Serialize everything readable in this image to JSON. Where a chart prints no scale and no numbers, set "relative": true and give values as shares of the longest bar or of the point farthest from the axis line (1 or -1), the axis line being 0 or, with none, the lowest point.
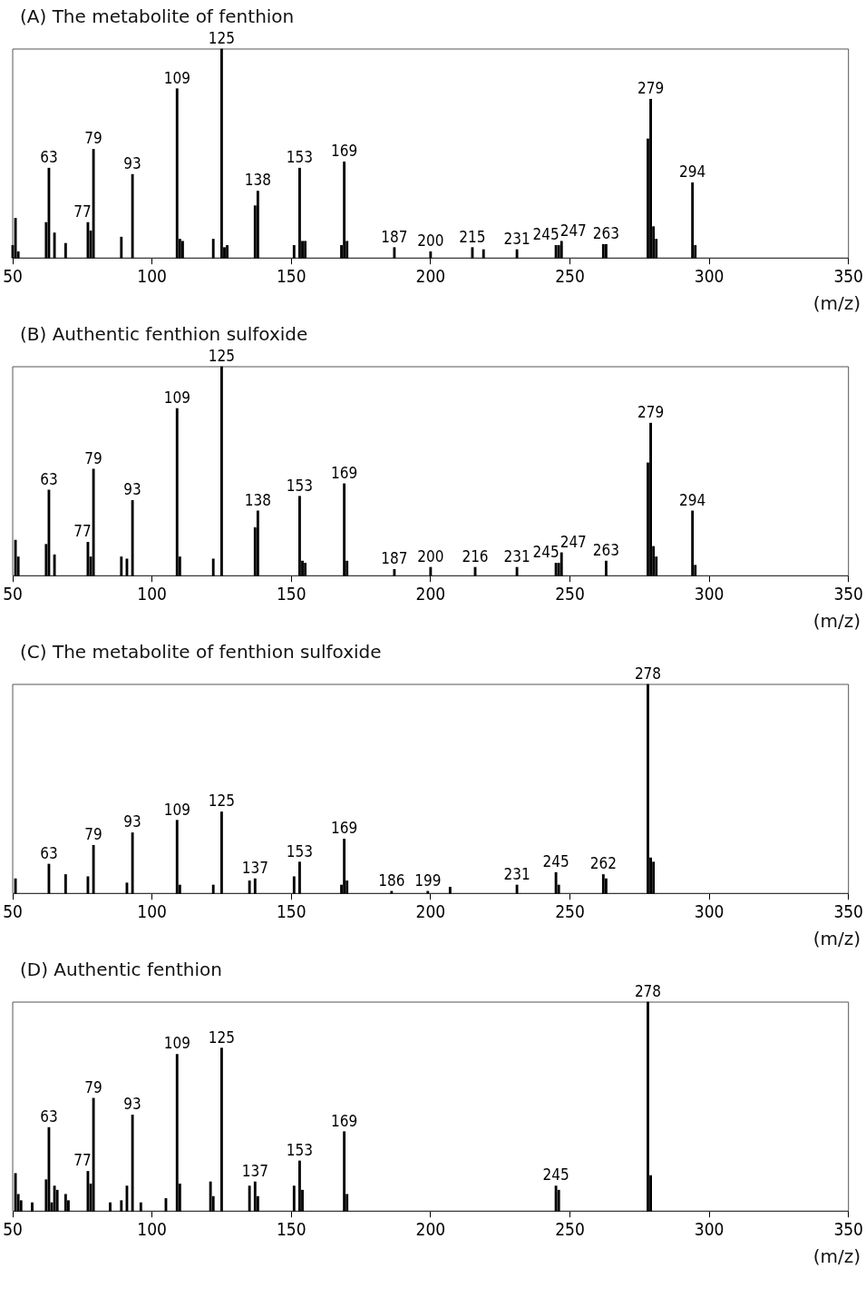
{
  "chart_data": [
    {
      "type": "bar",
      "title": "(A) The metabolite of fenthion",
      "xlabel": "(m/z)",
      "relative": true,
      "color": "#000000",
      "xlim": [
        50,
        350
      ],
      "xticks": [
        50,
        100,
        150,
        200,
        250,
        300,
        350
      ],
      "x": [
        50,
        51,
        52,
        62,
        63,
        65,
        69,
        77,
        78,
        79,
        89,
        93,
        109,
        110,
        111,
        122,
        125,
        126,
        127,
        137,
        138,
        151,
        153,
        154,
        155,
        168,
        169,
        170,
        187,
        200,
        215,
        219,
        231,
        245,
        246,
        247,
        262,
        263,
        278,
        279,
        280,
        281,
        294,
        295
      ],
      "values": [
        0.06,
        0.19,
        0.03,
        0.17,
        0.43,
        0.12,
        0.07,
        0.17,
        0.13,
        0.52,
        0.1,
        0.4,
        0.81,
        0.09,
        0.08,
        0.09,
        1,
        0.05,
        0.06,
        0.25,
        0.32,
        0.06,
        0.43,
        0.08,
        0.08,
        0.06,
        0.46,
        0.08,
        0.05,
        0.03,
        0.05,
        0.04,
        0.04,
        0.06,
        0.06,
        0.08,
        0.065,
        0.065,
        0.57,
        0.76,
        0.15,
        0.09,
        0.36,
        0.06
      ],
      "annotations": [
        {
          "text": "63",
          "x": 63,
          "y": 0.43
        },
        {
          "text": "77",
          "x": 77,
          "y": 0.17
        },
        {
          "text": "79",
          "x": 79,
          "y": 0.52
        },
        {
          "text": "93",
          "x": 93,
          "y": 0.4
        },
        {
          "text": "109",
          "x": 109,
          "y": 0.81
        },
        {
          "text": "125",
          "x": 125,
          "y": 1
        },
        {
          "text": "138",
          "x": 138,
          "y": 0.32
        },
        {
          "text": "153",
          "x": 153,
          "y": 0.43
        },
        {
          "text": "169",
          "x": 169,
          "y": 0.46
        },
        {
          "text": "187",
          "x": 187,
          "y": 0.05
        },
        {
          "text": "200",
          "x": 200,
          "y": 0.03
        },
        {
          "text": "215",
          "x": 215,
          "y": 0.05
        },
        {
          "text": "231",
          "x": 231,
          "y": 0.04
        },
        {
          "text": "245",
          "x": 245,
          "y": 0.06
        },
        {
          "text": "247",
          "x": 247,
          "y": 0.08
        },
        {
          "text": "263",
          "x": 263,
          "y": 0.065
        },
        {
          "text": "279",
          "x": 279,
          "y": 0.76
        },
        {
          "text": "294",
          "x": 294,
          "y": 0.36
        }
      ]
    },
    {
      "type": "bar",
      "title": "(B) Authentic fenthion sulfoxide",
      "xlabel": "(m/z)",
      "relative": true,
      "color": "#000000",
      "xlim": [
        50,
        350
      ],
      "xticks": [
        50,
        100,
        150,
        200,
        250,
        300,
        350
      ],
      "x": [
        51,
        52,
        62,
        63,
        65,
        77,
        78,
        79,
        89,
        91,
        93,
        109,
        110,
        122,
        125,
        137,
        138,
        153,
        154,
        155,
        169,
        170,
        187,
        200,
        216,
        231,
        245,
        246,
        247,
        263,
        278,
        279,
        280,
        281,
        294,
        295
      ],
      "values": [
        0.17,
        0.09,
        0.15,
        0.41,
        0.1,
        0.16,
        0.09,
        0.51,
        0.09,
        0.08,
        0.36,
        0.8,
        0.09,
        0.08,
        1,
        0.23,
        0.31,
        0.38,
        0.07,
        0.06,
        0.44,
        0.07,
        0.03,
        0.04,
        0.04,
        0.04,
        0.06,
        0.06,
        0.11,
        0.07,
        0.54,
        0.73,
        0.14,
        0.09,
        0.31,
        0.05
      ],
      "annotations": [
        {
          "text": "63",
          "x": 63,
          "y": 0.41
        },
        {
          "text": "77",
          "x": 77,
          "y": 0.16
        },
        {
          "text": "79",
          "x": 79,
          "y": 0.51
        },
        {
          "text": "93",
          "x": 93,
          "y": 0.36
        },
        {
          "text": "109",
          "x": 109,
          "y": 0.8
        },
        {
          "text": "125",
          "x": 125,
          "y": 1
        },
        {
          "text": "138",
          "x": 138,
          "y": 0.31
        },
        {
          "text": "153",
          "x": 153,
          "y": 0.38
        },
        {
          "text": "169",
          "x": 169,
          "y": 0.44
        },
        {
          "text": "187",
          "x": 187,
          "y": 0.03
        },
        {
          "text": "200",
          "x": 200,
          "y": 0.04
        },
        {
          "text": "216",
          "x": 216,
          "y": 0.04
        },
        {
          "text": "231",
          "x": 231,
          "y": 0.04
        },
        {
          "text": "245",
          "x": 245,
          "y": 0.06
        },
        {
          "text": "247",
          "x": 247,
          "y": 0.11
        },
        {
          "text": "263",
          "x": 263,
          "y": 0.07
        },
        {
          "text": "279",
          "x": 279,
          "y": 0.73
        },
        {
          "text": "294",
          "x": 294,
          "y": 0.31
        }
      ]
    },
    {
      "type": "bar",
      "title": "(C) The metabolite of fenthion sulfoxide",
      "xlabel": "(m/z)",
      "relative": true,
      "color": "#000000",
      "xlim": [
        50,
        350
      ],
      "xticks": [
        50,
        100,
        150,
        200,
        250,
        300,
        350
      ],
      "x": [
        51,
        63,
        69,
        77,
        79,
        91,
        93,
        109,
        110,
        122,
        125,
        135,
        137,
        151,
        153,
        168,
        169,
        170,
        186,
        199,
        207,
        231,
        245,
        246,
        262,
        263,
        278,
        279,
        280
      ],
      "values": [
        0.07,
        0.14,
        0.09,
        0.08,
        0.23,
        0.05,
        0.29,
        0.35,
        0.04,
        0.04,
        0.39,
        0.06,
        0.07,
        0.08,
        0.15,
        0.04,
        0.26,
        0.06,
        0.01,
        0.01,
        0.03,
        0.04,
        0.1,
        0.04,
        0.09,
        0.07,
        1,
        0.17,
        0.15
      ],
      "annotations": [
        {
          "text": "63",
          "x": 63,
          "y": 0.14
        },
        {
          "text": "79",
          "x": 79,
          "y": 0.23
        },
        {
          "text": "93",
          "x": 93,
          "y": 0.29
        },
        {
          "text": "109",
          "x": 109,
          "y": 0.35
        },
        {
          "text": "125",
          "x": 125,
          "y": 0.39
        },
        {
          "text": "137",
          "x": 137,
          "y": 0.07
        },
        {
          "text": "153",
          "x": 153,
          "y": 0.15
        },
        {
          "text": "169",
          "x": 169,
          "y": 0.26
        },
        {
          "text": "186",
          "x": 186,
          "y": 0.01
        },
        {
          "text": "199",
          "x": 199,
          "y": 0.01
        },
        {
          "text": "231",
          "x": 231,
          "y": 0.04
        },
        {
          "text": "245",
          "x": 245,
          "y": 0.1
        },
        {
          "text": "262",
          "x": 262,
          "y": 0.09
        },
        {
          "text": "278",
          "x": 278,
          "y": 1
        }
      ]
    },
    {
      "type": "bar",
      "title": "(D) Authentic fenthion",
      "xlabel": "(m/z)",
      "relative": true,
      "color": "#000000",
      "xlim": [
        50,
        350
      ],
      "xticks": [
        50,
        100,
        150,
        200,
        250,
        300,
        350
      ],
      "x": [
        51,
        52,
        53,
        57,
        62,
        63,
        64,
        65,
        66,
        69,
        70,
        77,
        78,
        79,
        85,
        89,
        91,
        93,
        96,
        105,
        109,
        110,
        121,
        122,
        125,
        135,
        137,
        138,
        151,
        153,
        154,
        169,
        170,
        245,
        246,
        278,
        279
      ],
      "values": [
        0.18,
        0.08,
        0.05,
        0.04,
        0.15,
        0.4,
        0.04,
        0.12,
        0.1,
        0.08,
        0.05,
        0.19,
        0.13,
        0.54,
        0.04,
        0.05,
        0.12,
        0.46,
        0.04,
        0.06,
        0.75,
        0.13,
        0.14,
        0.07,
        0.78,
        0.12,
        0.14,
        0.07,
        0.12,
        0.24,
        0.1,
        0.38,
        0.08,
        0.12,
        0.1,
        1,
        0.17
      ],
      "annotations": [
        {
          "text": "63",
          "x": 63,
          "y": 0.4
        },
        {
          "text": "77",
          "x": 77,
          "y": 0.19
        },
        {
          "text": "79",
          "x": 79,
          "y": 0.54
        },
        {
          "text": "93",
          "x": 93,
          "y": 0.46
        },
        {
          "text": "109",
          "x": 109,
          "y": 0.75
        },
        {
          "text": "125",
          "x": 125,
          "y": 0.78
        },
        {
          "text": "137",
          "x": 137,
          "y": 0.14
        },
        {
          "text": "153",
          "x": 153,
          "y": 0.24
        },
        {
          "text": "169",
          "x": 169,
          "y": 0.38
        },
        {
          "text": "245",
          "x": 245,
          "y": 0.12
        },
        {
          "text": "278",
          "x": 278,
          "y": 1
        }
      ]
    }
  ]
}
